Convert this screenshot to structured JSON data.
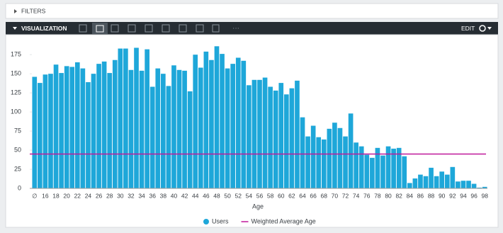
{
  "filters_label": "FILTERS",
  "visualization_label": "VISUALIZATION",
  "edit_label": "EDIT",
  "chart_data": {
    "type": "bar",
    "x_label": "Age",
    "categories": [
      "∅",
      null,
      "16",
      null,
      "18",
      null,
      "20",
      null,
      "22",
      null,
      "24",
      null,
      "26",
      null,
      "28",
      null,
      "30",
      null,
      "32",
      null,
      "34",
      null,
      "36",
      null,
      "38",
      null,
      "40",
      null,
      "42",
      null,
      "44",
      null,
      "46",
      null,
      "48",
      null,
      "50",
      null,
      "52",
      null,
      "54",
      null,
      "56",
      null,
      "58",
      null,
      "60",
      null,
      "62",
      null,
      "64",
      null,
      "66",
      null,
      "68",
      null,
      "70",
      null,
      "72",
      null,
      "74",
      null,
      "76",
      null,
      "78",
      null,
      "80",
      null,
      "82",
      null,
      "84",
      null,
      "86",
      null,
      "88",
      null,
      "90",
      null,
      "92",
      null,
      "94",
      null,
      "96",
      null,
      "98"
    ],
    "series": [
      {
        "name": "Users",
        "color": "#1ea7d9",
        "values": [
          146,
          138,
          149,
          150,
          162,
          151,
          160,
          159,
          165,
          157,
          139,
          150,
          163,
          166,
          151,
          168,
          183,
          183,
          155,
          184,
          154,
          182,
          133,
          157,
          150,
          134,
          161,
          155,
          154,
          127,
          175,
          158,
          179,
          168,
          186,
          176,
          157,
          163,
          171,
          167,
          135,
          142,
          142,
          145,
          133,
          128,
          138,
          123,
          131,
          141,
          93,
          68,
          82,
          67,
          64,
          78,
          86,
          79,
          68,
          98,
          60,
          55,
          44,
          40,
          53,
          43,
          55,
          52,
          53,
          42,
          7,
          13,
          18,
          16,
          27,
          16,
          22,
          18,
          28,
          9,
          10,
          10,
          6,
          1,
          2
        ]
      }
    ],
    "reference_line": {
      "name": "Weighted Average Age",
      "value": 45,
      "color": "#c0199b"
    },
    "ylim": [
      0,
      190
    ],
    "yticks": [
      0,
      25,
      50,
      75,
      100,
      125,
      150,
      175
    ],
    "grid": false
  }
}
